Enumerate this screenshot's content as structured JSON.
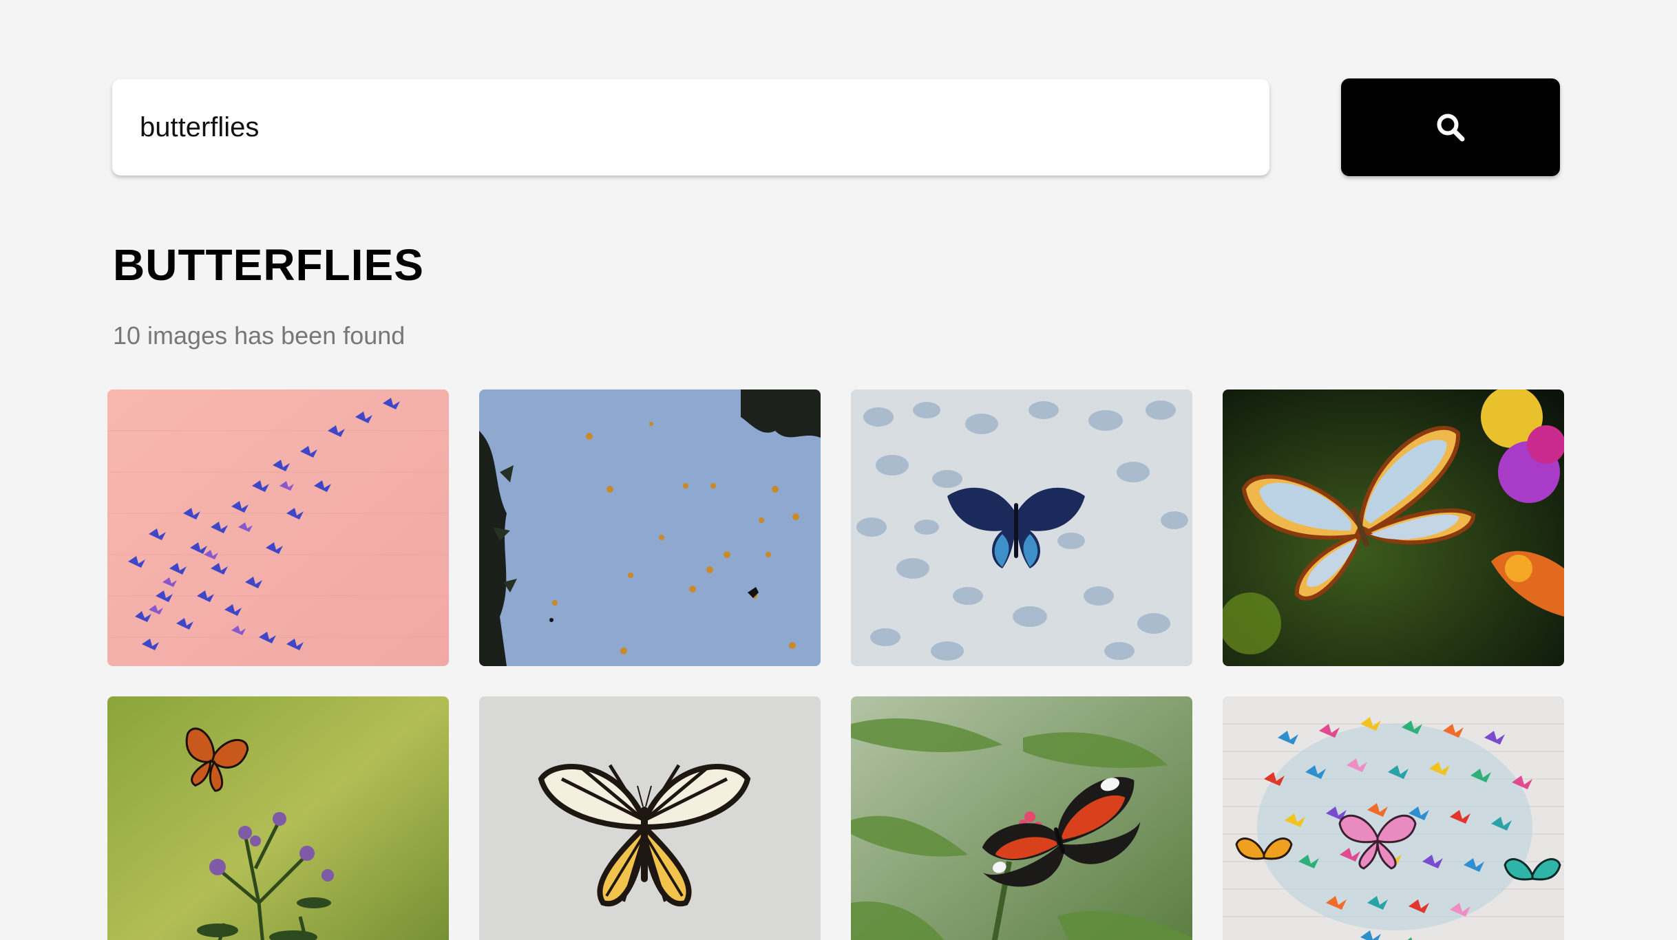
{
  "search": {
    "value": "butterflies",
    "placeholder": "",
    "button_icon": "search-icon"
  },
  "results": {
    "title": "BUTTERFLIES",
    "count_text": "10 images has been found"
  },
  "images": [
    {
      "subject": "blue-butterflies-on-pink-wall",
      "bg": "#f5b3ac"
    },
    {
      "subject": "butterflies-in-blue-sky",
      "bg": "#8ea7cd"
    },
    {
      "subject": "blue-butterfly-on-gravel",
      "bg": "#c9d3dd"
    },
    {
      "subject": "orange-white-butterfly-on-flower",
      "bg": "#1e3015"
    },
    {
      "subject": "monarch-on-purple-flowers",
      "bg": "#9fb04a"
    },
    {
      "subject": "yellow-black-butterfly-specimen",
      "bg": "#d6d6d4"
    },
    {
      "subject": "red-black-butterfly-on-leaves",
      "bg": "#8aa37a"
    },
    {
      "subject": "colorful-butterfly-wall-mural",
      "bg": "#e7e4e4"
    }
  ],
  "colors": {
    "page_bg": "#f4f4f4",
    "button_bg": "#000000",
    "count_text": "#777777"
  }
}
